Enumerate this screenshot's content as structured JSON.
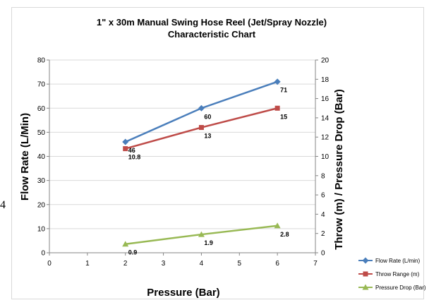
{
  "stray_text": "4",
  "chart_data": {
    "type": "line",
    "title": "1\" x 30m Manual Swing Hose Reel (Jet/Spray Nozzle)",
    "subtitle": "Characteristic Chart",
    "xlabel": "Pressure (Bar)",
    "ylabel": "Flow Rate (L/Min)",
    "y2label": "Throw (m) / Pressure Drop (Bar)",
    "xlim": [
      0,
      7
    ],
    "ylim": [
      0,
      80
    ],
    "y2lim": [
      0,
      20
    ],
    "x_ticks": [
      "0",
      "1",
      "2",
      "3",
      "4",
      "5",
      "6",
      "7"
    ],
    "y_ticks": [
      "0",
      "10",
      "20",
      "30",
      "40",
      "50",
      "60",
      "70",
      "80"
    ],
    "y2_ticks": [
      "0",
      "2",
      "4",
      "6",
      "8",
      "10",
      "12",
      "14",
      "16",
      "18",
      "20"
    ],
    "grid": true,
    "legend_position": "bottom-right",
    "series": [
      {
        "name": "Flow Rate (L/min)",
        "axis": "left",
        "marker": "diamond",
        "color": "#4a7ebb",
        "x": [
          2,
          4,
          6
        ],
        "values": [
          46,
          60,
          71
        ],
        "labels": [
          "46",
          "60",
          "71"
        ]
      },
      {
        "name": "Throw Range (m)",
        "axis": "right",
        "marker": "square",
        "color": "#be4b48",
        "x": [
          2,
          4,
          6
        ],
        "values": [
          10.8,
          13,
          15
        ],
        "labels": [
          "10.8",
          "13",
          "15"
        ]
      },
      {
        "name": "Pressure Drop (Bar)",
        "axis": "right",
        "marker": "triangle",
        "color": "#98b954",
        "x": [
          2,
          4,
          6
        ],
        "values": [
          0.9,
          1.9,
          2.8
        ],
        "labels": [
          "0.9",
          "1.9",
          "2.8"
        ]
      }
    ]
  }
}
